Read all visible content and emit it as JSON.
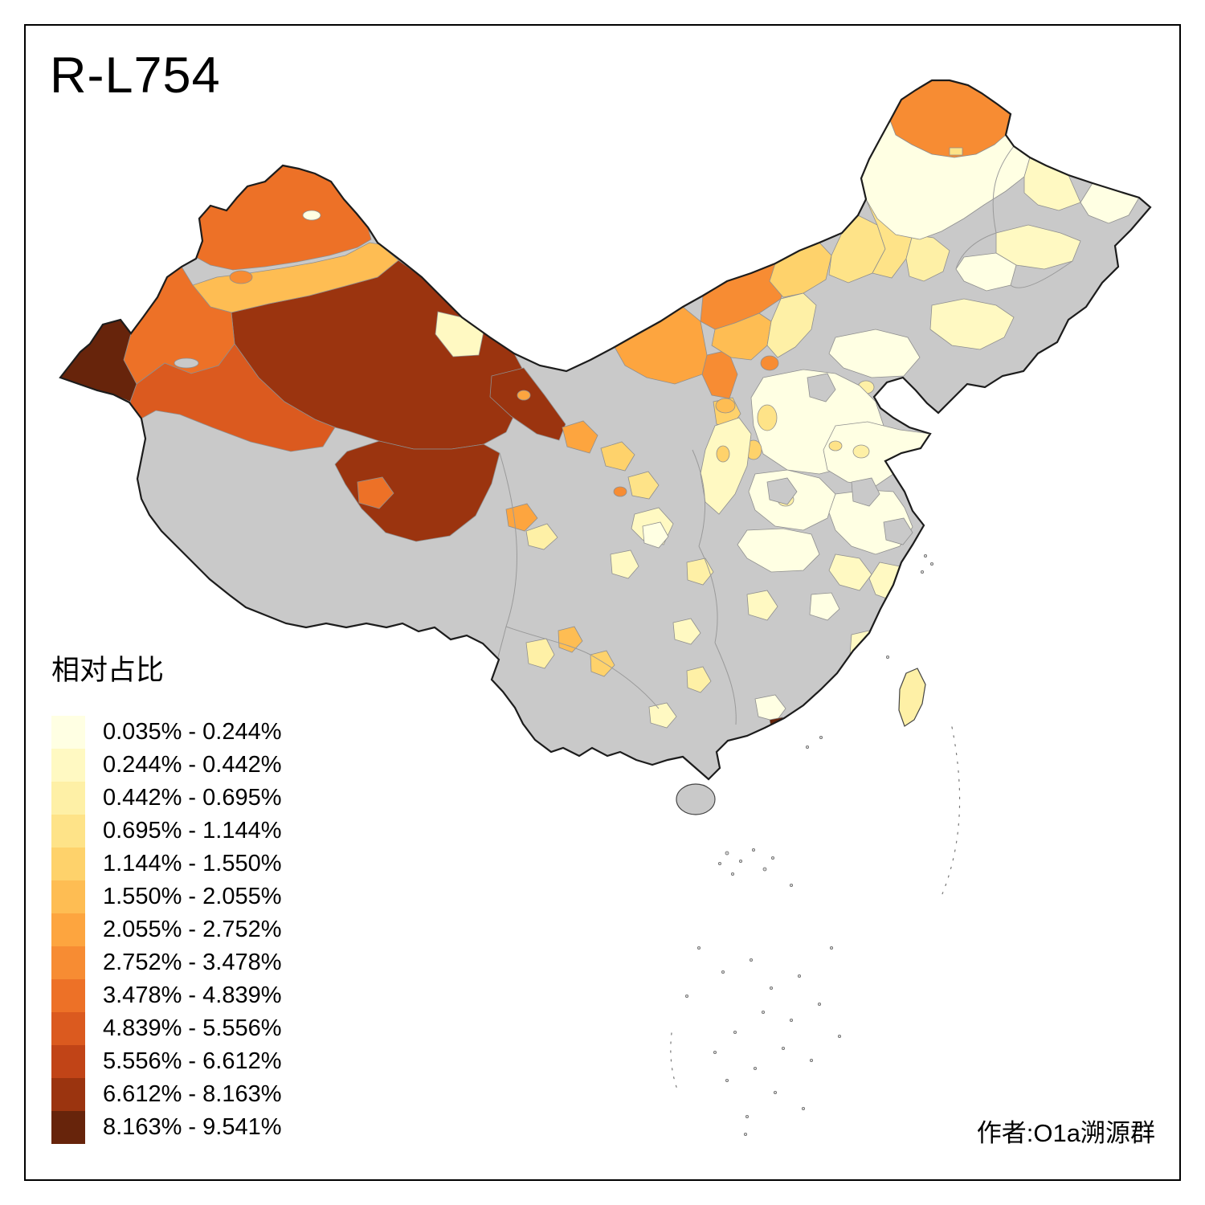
{
  "title": "R-L754",
  "attribution": "作者:O1a溯源群",
  "legend": {
    "title": "相对占比",
    "items": [
      {
        "label": "0.035% - 0.244%",
        "color": "#FFFFE3"
      },
      {
        "label": "0.244% - 0.442%",
        "color": "#FFF9C2"
      },
      {
        "label": "0.442% - 0.695%",
        "color": "#FEF0A6"
      },
      {
        "label": "0.695% - 1.144%",
        "color": "#FEE388"
      },
      {
        "label": "1.144% - 1.550%",
        "color": "#FED26B"
      },
      {
        "label": "1.550% - 2.055%",
        "color": "#FEBD53"
      },
      {
        "label": "2.055% - 2.752%",
        "color": "#FDA53F"
      },
      {
        "label": "2.752% - 3.478%",
        "color": "#F78C33"
      },
      {
        "label": "3.478% - 4.839%",
        "color": "#ED7127"
      },
      {
        "label": "4.839% - 5.556%",
        "color": "#DB5A1F"
      },
      {
        "label": "5.556% - 6.612%",
        "color": "#C14417"
      },
      {
        "label": "6.612% - 8.163%",
        "color": "#9B340F"
      },
      {
        "label": "8.163% - 9.541%",
        "color": "#67240B"
      }
    ]
  },
  "map": {
    "nodata_color": "#C9C9C9",
    "outline_color": "#1C1C1C",
    "background": "#FFFFFF",
    "regions": {
      "mainland-base": "nodata",
      "xj-north": 9,
      "xj-band": 6,
      "xj-aksu": 9,
      "xj-east-dark": 12,
      "xj-hotan": 10,
      "xj-west-dark": 13,
      "bortala-dot": 8,
      "altay-pale-dot": 1,
      "aral-enclave": "nodata",
      "ejina-pale": 2,
      "jiuquan-dark": 12,
      "jiayuguan-dot": 7,
      "qinghai-haixi": 12,
      "qinghai-spot": 9,
      "xining-spot": 7,
      "qinghai-east-pale": 3,
      "gansu-zhangye": 7,
      "gansu-wuwei": 5,
      "gansu-lanzhou": 4,
      "linxia-dot": 8,
      "gansu-se-pale": 2,
      "ningxia": 8,
      "ningxia-south": 5,
      "im-alxa": 7,
      "im-bayannur": 8,
      "im-ordos": 6,
      "im-ulanqab": 5,
      "im-xilingol": 4,
      "im-south-pale": 3,
      "hohhot-dot": 8,
      "im-chifeng": 4,
      "tongliao": 3,
      "hulunbuir": 8,
      "hulunbuir-dot": 4,
      "heilongjiang": 1,
      "heilongjiang-east-pale": 2,
      "jiamusi-pale": 1,
      "jilin-pale": 2,
      "changchun-pale": 1,
      "liaoning-pale": 2,
      "hebei-north-pale": 1,
      "beijing-spot": 3,
      "north-china-plain": 1,
      "shanxi-spot1": 4,
      "shanxi-spot2": 5,
      "yulin-spot": 6,
      "shaanxi-pale": 2,
      "shaanxi-spot": 5,
      "shandong": 1,
      "shandong-spot": 3,
      "jinan-spot": 4,
      "henan": 1,
      "henan-spot": 3,
      "jiangsu-anhui": 1,
      "hubei": 1,
      "anhui-south-pale": 2,
      "zhejiang-pale": 2,
      "fujian-spot": 2,
      "jiangxi-spot": 1,
      "hunan-spot": 2,
      "chongqing-spot": 3,
      "sichuan-spot1": 2,
      "sichuan-spot2": 1,
      "yunnan-spot1": 3,
      "yunnan-spot2": 6,
      "yunnan-spot3": 5,
      "guizhou-spot": 2,
      "guizhou-spot2": 3,
      "guangxi-spot": 2,
      "guangdong-spot": 1,
      "shenzhen-dark": 13,
      "gray-patch-1": "nodata",
      "gray-patch-2": "nodata",
      "gray-patch-3": "nodata",
      "gray-patch-4": "nodata",
      "hainan": "nodata",
      "taiwan": 3
    }
  }
}
